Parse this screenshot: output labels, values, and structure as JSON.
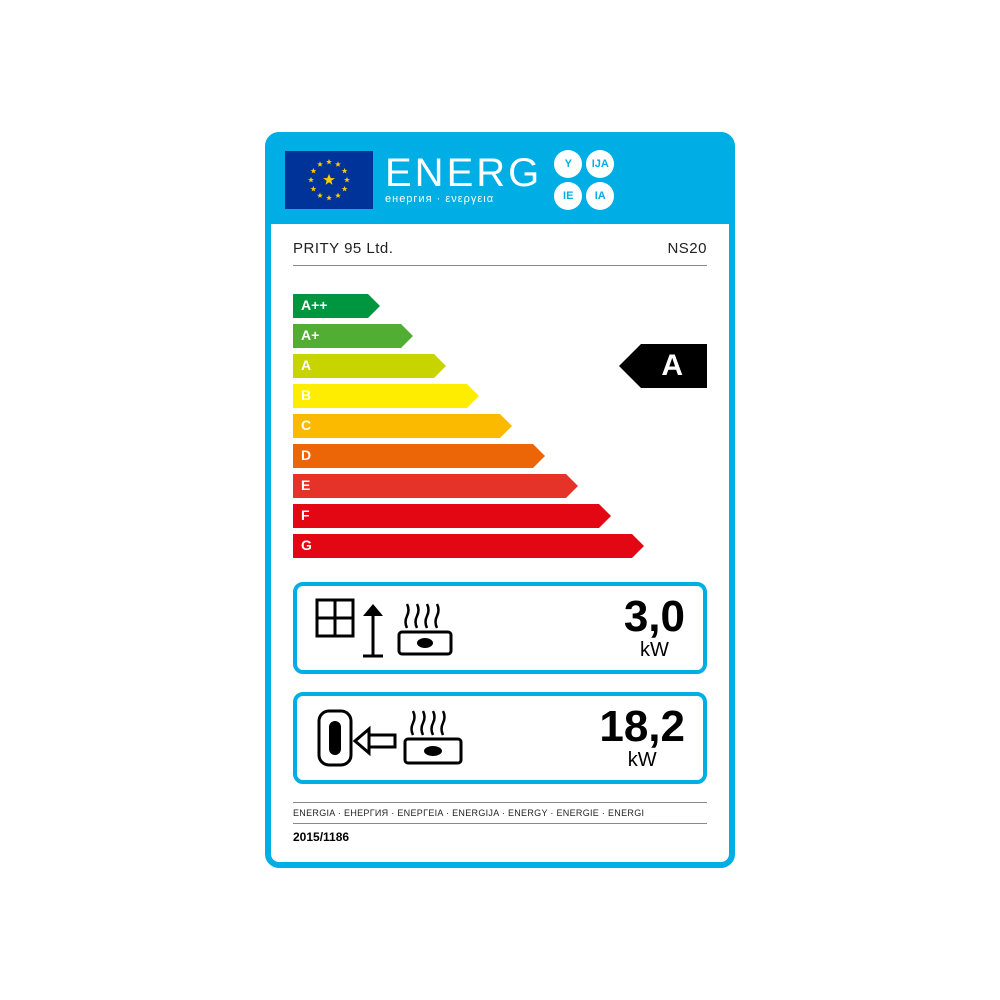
{
  "header": {
    "title": "ENERG",
    "subtitle": "енергия · ενεργεια",
    "lang_codes": [
      "Y",
      "IJA",
      "IE",
      "IA"
    ],
    "bg_color": "#00aee6",
    "flag_bg": "#003399",
    "star_color": "#ffcc00"
  },
  "maker": "PRITY 95 Ltd.",
  "model": "NS20",
  "rating": {
    "awarded": "A",
    "awarded_index": 2,
    "arrow_bg": "#000000",
    "arrow_fg": "#ffffff",
    "classes": [
      {
        "label": "A++",
        "width_pct": 18,
        "color": "#009640"
      },
      {
        "label": "A+",
        "width_pct": 26,
        "color": "#52ae32"
      },
      {
        "label": "A",
        "width_pct": 34,
        "color": "#c8d400"
      },
      {
        "label": "B",
        "width_pct": 42,
        "color": "#ffed00"
      },
      {
        "label": "C",
        "width_pct": 50,
        "color": "#fbba00"
      },
      {
        "label": "D",
        "width_pct": 58,
        "color": "#ec6608"
      },
      {
        "label": "E",
        "width_pct": 66,
        "color": "#e6332a"
      },
      {
        "label": "F",
        "width_pct": 74,
        "color": "#e30613"
      },
      {
        "label": "G",
        "width_pct": 82,
        "color": "#e30613"
      }
    ]
  },
  "specs": [
    {
      "type": "room_heat",
      "value": "3,0",
      "unit": "kW"
    },
    {
      "type": "water_heat",
      "value": "18,2",
      "unit": "kW"
    }
  ],
  "footer_words": "ENERGIA · ЕНЕРГИЯ · ΕΝΕΡΓΕΙΑ · ENERGIJA · ENERGY · ENERGIE · ENERGI",
  "regulation": "2015/1186"
}
